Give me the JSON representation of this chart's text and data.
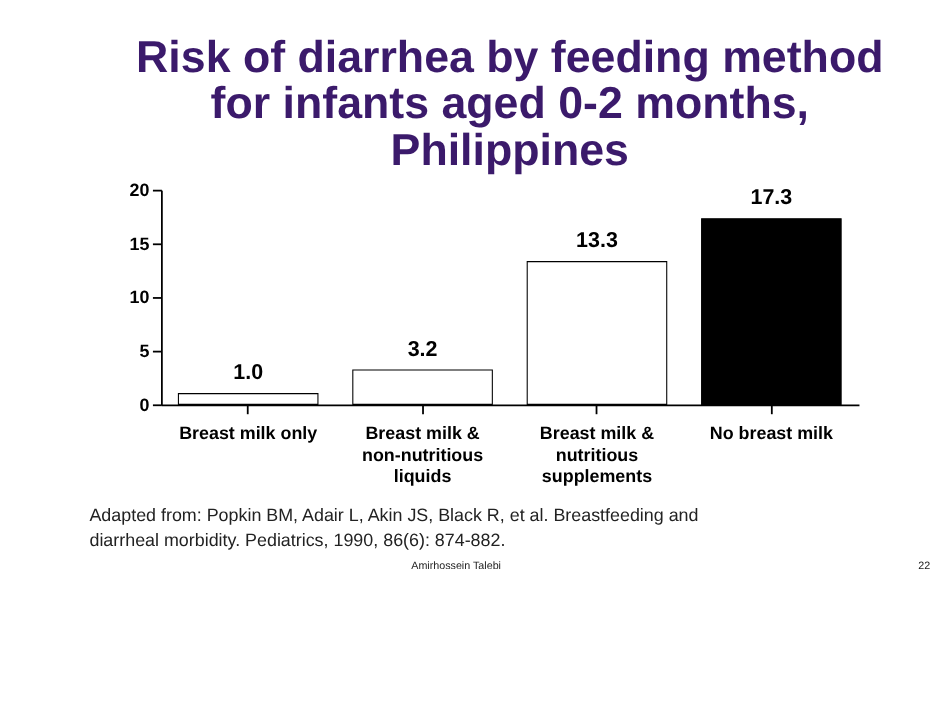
{
  "chart_data": {
    "type": "bar",
    "title": "Risk of diarrhea by feeding method\nfor infants aged 0-2 months,\nPhilippines",
    "categories": [
      "Breast milk only",
      "Breast milk &\nnon-nutritious\nliquids",
      "Breast milk &\nnutritious\nsupplements",
      "No breast milk"
    ],
    "values": [
      1.0,
      3.2,
      13.3,
      17.3
    ],
    "colors": [
      "#ffffff",
      "#ffffff",
      "#ffffff",
      "#000000"
    ],
    "value_labels": [
      "1.0",
      "3.2",
      "13.3",
      "17.3"
    ],
    "ylim": [
      0,
      20
    ],
    "yticks": [
      0,
      5,
      10,
      15,
      20
    ],
    "grid": false,
    "annotations": [
      "Adapted from: Popkin BM, Adair L, Akin JS, Black R, et al. Breastfeeding and diarrheal morbidity. Pediatrics, 1990, 86(6): 874-882.",
      "Amirhossein Talebi",
      "22"
    ]
  }
}
